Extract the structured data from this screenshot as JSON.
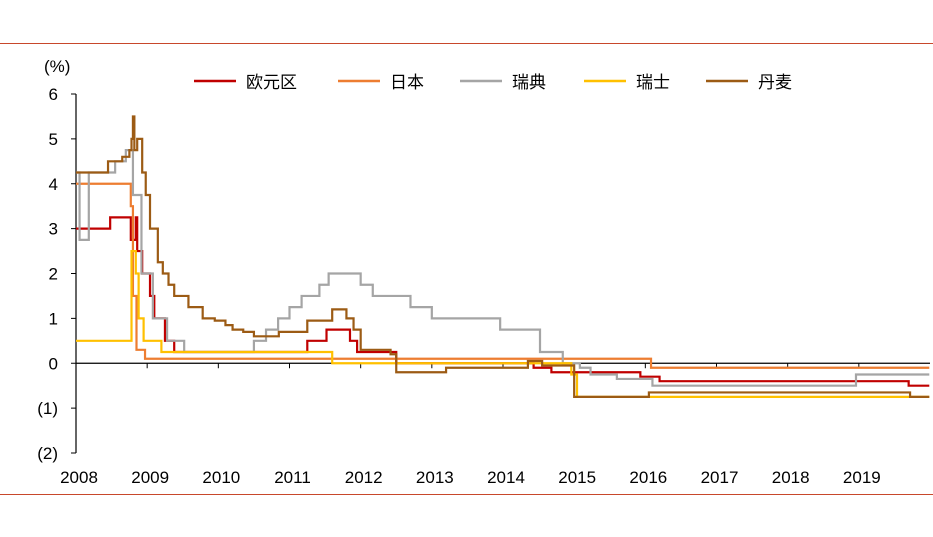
{
  "chart_data": {
    "type": "line",
    "title": "",
    "xlabel": "",
    "ylabel": "(%)",
    "xlim": [
      2008,
      2020
    ],
    "ylim": [
      -2,
      6
    ],
    "x_ticks": [
      2008,
      2009,
      2010,
      2011,
      2012,
      2013,
      2014,
      2015,
      2016,
      2017,
      2018,
      2019
    ],
    "x_tick_labels": [
      "2008",
      "2009",
      "2010",
      "2011",
      "2012",
      "2013",
      "2014",
      "2015",
      "2016",
      "2017",
      "2018",
      "2019"
    ],
    "y_ticks": [
      6,
      5,
      4,
      3,
      2,
      1,
      0,
      -1,
      -2
    ],
    "y_tick_labels": [
      "6",
      "5",
      "4",
      "3",
      "2",
      "1",
      "0",
      "(1)",
      "(2)"
    ],
    "grid": false,
    "legend": "top",
    "series": [
      {
        "name": "欧元区",
        "color": "#c00000",
        "step": true,
        "points": [
          [
            2008.0,
            3.0
          ],
          [
            2008.48,
            3.25
          ],
          [
            2008.77,
            2.75
          ],
          [
            2008.84,
            3.25
          ],
          [
            2008.86,
            2.5
          ],
          [
            2008.93,
            2.0
          ],
          [
            2009.04,
            1.5
          ],
          [
            2009.1,
            1.0
          ],
          [
            2009.25,
            0.5
          ],
          [
            2009.38,
            0.25
          ],
          [
            2011.25,
            0.5
          ],
          [
            2011.52,
            0.75
          ],
          [
            2011.85,
            0.5
          ],
          [
            2011.95,
            0.25
          ],
          [
            2012.5,
            0.0
          ],
          [
            2013.33,
            0.0
          ],
          [
            2013.86,
            0.0
          ],
          [
            2014.43,
            -0.1
          ],
          [
            2014.68,
            -0.2
          ],
          [
            2015.93,
            -0.3
          ],
          [
            2016.2,
            -0.4
          ],
          [
            2019.7,
            -0.5
          ],
          [
            2019.99,
            -0.5
          ]
        ]
      },
      {
        "name": "日本",
        "color": "#ed7d31",
        "step": true,
        "points": [
          [
            2008.0,
            4.0
          ],
          [
            2008.72,
            4.0
          ],
          [
            2008.77,
            3.5
          ],
          [
            2008.8,
            1.5
          ],
          [
            2008.85,
            0.3
          ],
          [
            2008.97,
            0.1
          ],
          [
            2015.0,
            0.1
          ],
          [
            2016.08,
            -0.1
          ],
          [
            2019.99,
            -0.1
          ]
        ]
      },
      {
        "name": "瑞典",
        "color": "#a5a5a5",
        "step": true,
        "points": [
          [
            2008.0,
            4.25
          ],
          [
            2008.05,
            2.75
          ],
          [
            2008.18,
            4.25
          ],
          [
            2008.55,
            4.5
          ],
          [
            2008.7,
            4.75
          ],
          [
            2008.8,
            3.75
          ],
          [
            2008.92,
            2.0
          ],
          [
            2009.08,
            1.0
          ],
          [
            2009.28,
            0.5
          ],
          [
            2009.52,
            0.25
          ],
          [
            2010.5,
            0.5
          ],
          [
            2010.67,
            0.75
          ],
          [
            2010.84,
            1.0
          ],
          [
            2011.0,
            1.25
          ],
          [
            2011.17,
            1.5
          ],
          [
            2011.42,
            1.75
          ],
          [
            2011.55,
            2.0
          ],
          [
            2012.0,
            1.75
          ],
          [
            2012.17,
            1.5
          ],
          [
            2012.7,
            1.25
          ],
          [
            2013.0,
            1.0
          ],
          [
            2013.96,
            0.75
          ],
          [
            2014.52,
            0.25
          ],
          [
            2014.84,
            0.0
          ],
          [
            2015.08,
            -0.1
          ],
          [
            2015.23,
            -0.25
          ],
          [
            2015.6,
            -0.35
          ],
          [
            2016.1,
            -0.5
          ],
          [
            2018.96,
            -0.25
          ],
          [
            2019.99,
            -0.25
          ]
        ]
      },
      {
        "name": "瑞士",
        "color": "#ffc000",
        "step": true,
        "points": [
          [
            2008.0,
            0.5
          ],
          [
            2008.78,
            2.5
          ],
          [
            2008.84,
            2.0
          ],
          [
            2008.88,
            1.0
          ],
          [
            2008.95,
            0.5
          ],
          [
            2009.2,
            0.25
          ],
          [
            2011.6,
            0.0
          ],
          [
            2014.96,
            -0.25
          ],
          [
            2015.04,
            -0.75
          ],
          [
            2019.99,
            -0.75
          ]
        ]
      },
      {
        "name": "丹麦",
        "color": "#9c5b14",
        "step": true,
        "points": [
          [
            2008.0,
            4.25
          ],
          [
            2008.45,
            4.5
          ],
          [
            2008.65,
            4.6
          ],
          [
            2008.75,
            4.75
          ],
          [
            2008.78,
            5.0
          ],
          [
            2008.8,
            5.5
          ],
          [
            2008.82,
            4.75
          ],
          [
            2008.86,
            5.0
          ],
          [
            2008.93,
            4.25
          ],
          [
            2008.98,
            3.75
          ],
          [
            2009.04,
            3.0
          ],
          [
            2009.15,
            2.25
          ],
          [
            2009.22,
            2.0
          ],
          [
            2009.3,
            1.75
          ],
          [
            2009.38,
            1.5
          ],
          [
            2009.48,
            1.5
          ],
          [
            2009.58,
            1.25
          ],
          [
            2009.78,
            1.0
          ],
          [
            2009.95,
            0.95
          ],
          [
            2010.1,
            0.85
          ],
          [
            2010.2,
            0.75
          ],
          [
            2010.35,
            0.7
          ],
          [
            2010.5,
            0.6
          ],
          [
            2010.85,
            0.7
          ],
          [
            2011.25,
            0.95
          ],
          [
            2011.6,
            1.2
          ],
          [
            2011.8,
            1.0
          ],
          [
            2011.9,
            0.75
          ],
          [
            2012.0,
            0.3
          ],
          [
            2012.42,
            0.2
          ],
          [
            2012.5,
            -0.2
          ],
          [
            2013.2,
            -0.1
          ],
          [
            2014.35,
            0.05
          ],
          [
            2014.55,
            -0.05
          ],
          [
            2015.0,
            -0.75
          ],
          [
            2016.05,
            -0.65
          ],
          [
            2019.72,
            -0.75
          ],
          [
            2019.99,
            -0.75
          ]
        ]
      }
    ]
  }
}
